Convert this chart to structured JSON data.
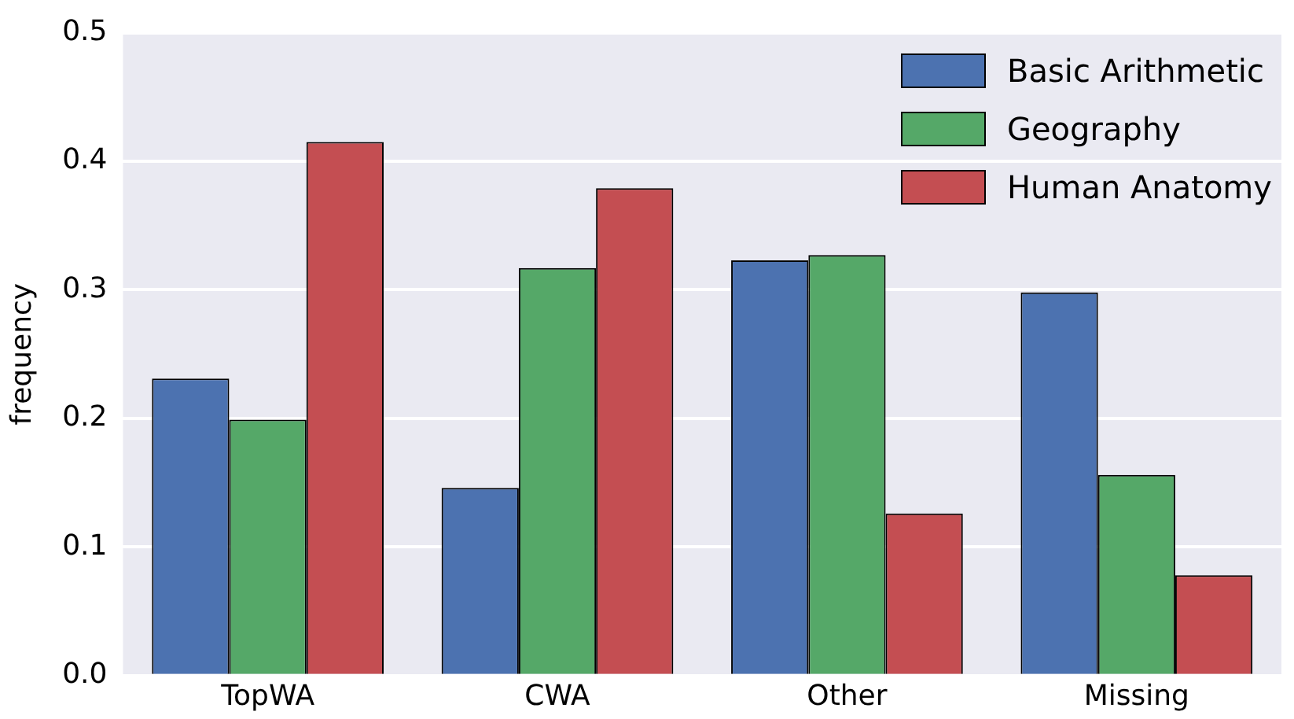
{
  "chart_data": {
    "type": "bar",
    "ylabel": "frequency",
    "categories": [
      "TopWA",
      "CWA",
      "Other",
      "Missing"
    ],
    "series": [
      {
        "name": "Basic Arithmetic",
        "color": "#4c72b0",
        "values": [
          0.231,
          0.146,
          0.323,
          0.298
        ]
      },
      {
        "name": "Geography",
        "color": "#55a868",
        "values": [
          0.199,
          0.317,
          0.327,
          0.156
        ]
      },
      {
        "name": "Human Anatomy",
        "color": "#c44e52",
        "values": [
          0.415,
          0.379,
          0.126,
          0.078
        ]
      }
    ],
    "ylim": [
      0,
      0.5
    ],
    "yticks": [
      {
        "value": 0,
        "label": "0.0"
      },
      0.1,
      0.2,
      0.3,
      0.4,
      0.5
    ],
    "grid": "y",
    "legend": "top right"
  }
}
